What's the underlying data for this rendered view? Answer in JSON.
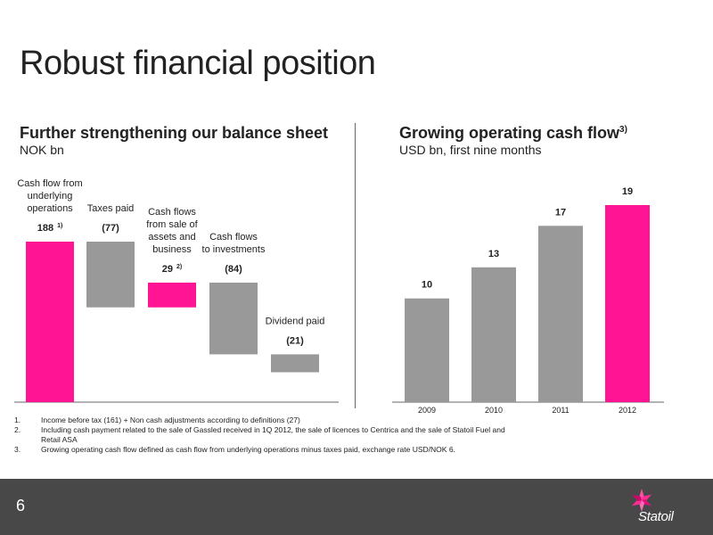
{
  "slide": {
    "title": "Robust financial position",
    "page_number": "6",
    "logo_text": "Statoil"
  },
  "left": {
    "heading": "Further strengthening our balance sheet",
    "subheading": "NOK bn"
  },
  "right": {
    "heading": "Growing operating cash flow",
    "heading_sup": "3)",
    "subheading": "USD bn, first nine months"
  },
  "footnotes": [
    {
      "num": "1.",
      "text": "Income before tax (161) + Non cash adjustments according to definitions (27)"
    },
    {
      "num": "2.",
      "text": "Including cash payment related to the sale of Gassled received in 1Q 2012, the sale of licences to Centrica and the sale of Statoil Fuel and Retail ASA"
    },
    {
      "num": "3.",
      "text": "Growing operating cash flow defined as cash flow from underlying operations minus taxes paid, exchange rate USD/NOK 6."
    }
  ],
  "colors": {
    "accent": "#ff1493",
    "bar": "#999999",
    "footer": "#484848"
  },
  "chart_data": [
    {
      "type": "bar",
      "subtype": "waterfall",
      "categories": [
        "Cash flow from underlying operations",
        "Taxes paid",
        "Cash flows from sale of assets and business",
        "Cash flows to investments",
        "Dividend paid"
      ],
      "label_lines": [
        [
          "Cash flow from",
          "underlying",
          "operations"
        ],
        [
          "Taxes paid"
        ],
        [
          "Cash flows",
          "from sale of",
          "assets and",
          "business"
        ],
        [
          "Cash flows",
          "to investments"
        ],
        [
          "Dividend paid"
        ]
      ],
      "values": [
        188,
        -77,
        29,
        -84,
        -21
      ],
      "value_labels": [
        "188",
        "(77)",
        "29",
        "(84)",
        "(21)"
      ],
      "value_label_sups": [
        "1)",
        "",
        "2)",
        "",
        ""
      ],
      "highlight": [
        true,
        false,
        true,
        false,
        false
      ],
      "ylim": [
        0,
        188
      ]
    },
    {
      "type": "bar",
      "categories": [
        "2009",
        "2010",
        "2011",
        "2012"
      ],
      "values": [
        10,
        13,
        17,
        19
      ],
      "value_labels": [
        "10",
        "13",
        "17",
        "19"
      ],
      "highlight": [
        false,
        false,
        false,
        true
      ],
      "ylim": [
        0,
        19
      ]
    }
  ]
}
